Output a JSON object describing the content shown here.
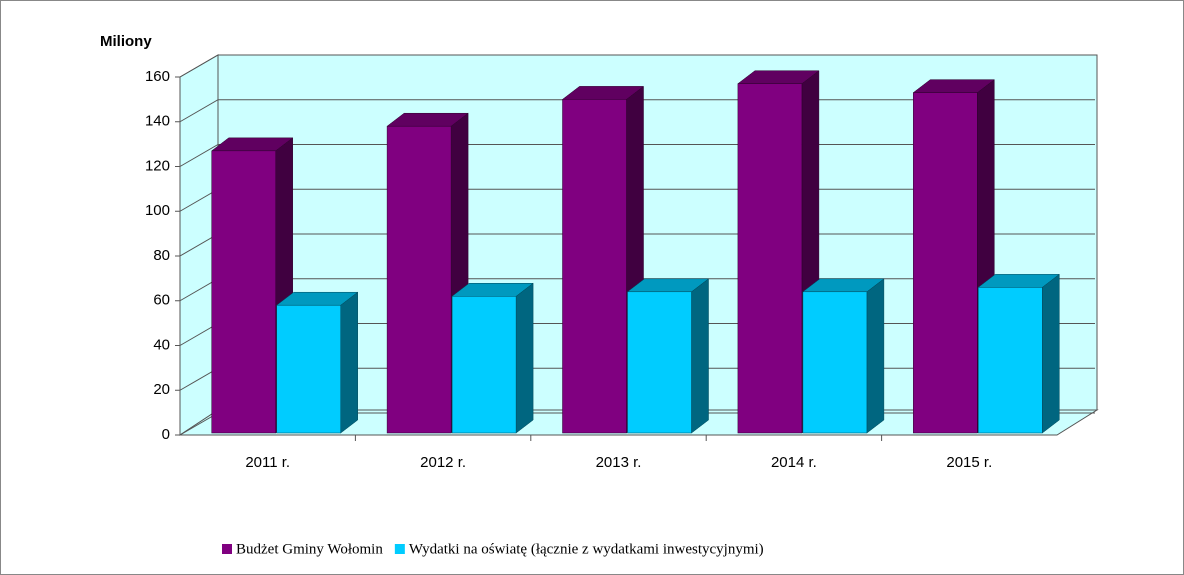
{
  "chart_data": {
    "type": "bar3d",
    "y_label": "Miliony",
    "categories": [
      "2011 r.",
      "2012 r.",
      "2013 r.",
      "2014 r.",
      "2015 r."
    ],
    "series": [
      {
        "name": "Budżet Gminy Wołomin",
        "color": "#800080",
        "values": [
          127,
          138,
          150,
          157,
          153
        ]
      },
      {
        "name": "Wydatki na oświatę (łącznie z wydatkami inwestycyjnymi)",
        "color": "#00ccff",
        "values": [
          58,
          62,
          64,
          64,
          66
        ]
      }
    ],
    "ylim": [
      0,
      160
    ],
    "yticks": [
      0,
      20,
      40,
      60,
      80,
      100,
      120,
      140,
      160
    ],
    "grid": true
  }
}
